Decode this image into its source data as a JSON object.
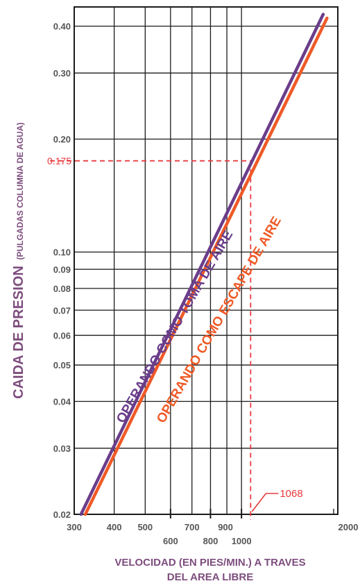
{
  "chart_data": {
    "type": "line",
    "scale": {
      "x": "log",
      "y": "log"
    },
    "xlim": [
      300,
      2000
    ],
    "ylim": [
      0.02,
      0.45
    ],
    "x_ticks_upper": [
      "300",
      "400",
      "500",
      "700",
      "2000"
    ],
    "x_ticks_upper_values": [
      300,
      400,
      500,
      700,
      2000
    ],
    "x_ticks_lower": [
      "600",
      "800",
      "1000"
    ],
    "x_ticks_lower_values": [
      600,
      800,
      1000
    ],
    "x_tick_900": "900",
    "y_ticks": [
      "0.40",
      "0.30",
      "0.20",
      "0.10",
      "0.09",
      "0.08",
      "0.07",
      "0.06",
      "0.05",
      "0.04",
      "0.03",
      "0.02"
    ],
    "y_tick_values": [
      0.4,
      0.3,
      0.2,
      0.1,
      0.09,
      0.08,
      0.07,
      0.06,
      0.05,
      0.04,
      0.03,
      0.02
    ],
    "x_grid": [
      400,
      500,
      600,
      700,
      800,
      900,
      1000
    ],
    "ylabel_main": "CAIDA DE PRESION",
    "ylabel_sub": "(PULGADAS COLUMNA DE AGUA)",
    "xlabel_line1": "VELOCIDAD (EN PIES/MIN.) A TRAVES",
    "xlabel_line2": "DEL AREA LIBRE",
    "series": [
      {
        "name": "OPERANDO COMO TOMA DE AIRE",
        "color": "#6a3d8a",
        "x": [
          315,
          1800
        ],
        "y": [
          0.02,
          0.43
        ]
      },
      {
        "name": "OPERANDO COMO ESCAPE DE AIRE",
        "color": "#ef5a27",
        "x": [
          325,
          1850
        ],
        "y": [
          0.02,
          0.42
        ]
      }
    ],
    "annotations": [
      {
        "label": "0.175",
        "value": 0.175,
        "axis": "y",
        "color": "#e8383d"
      },
      {
        "label": "1068",
        "value": 1068,
        "axis": "x",
        "color": "#e8383d"
      }
    ]
  }
}
